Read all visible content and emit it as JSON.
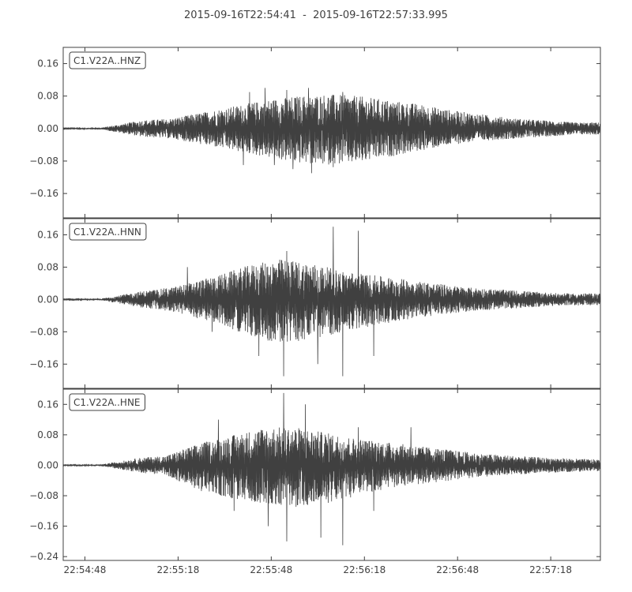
{
  "title": "2015-09-16T22:54:41  -  2015-09-16T22:57:33.995",
  "chart_data": [
    {
      "type": "line",
      "label": "C1.V22A..HNZ",
      "ylim": [
        -0.22,
        0.2
      ],
      "yticks": [
        -0.16,
        -0.08,
        0.0,
        0.08,
        0.16
      ],
      "ytick_labels": [
        "−0.16",
        "−0.08",
        "0.00",
        "0.08",
        "0.16"
      ],
      "envelope": {
        "times": [
          0,
          12,
          18,
          25,
          35,
          45,
          55,
          65,
          75,
          85,
          95,
          105,
          115,
          125,
          135,
          145,
          155,
          165,
          172.995
        ],
        "positive": [
          0.001,
          0.002,
          0.01,
          0.02,
          0.025,
          0.04,
          0.055,
          0.07,
          0.08,
          0.085,
          0.08,
          0.07,
          0.06,
          0.045,
          0.035,
          0.025,
          0.02,
          0.015,
          0.015
        ],
        "negative": [
          0.001,
          0.002,
          0.01,
          0.02,
          0.025,
          0.04,
          0.055,
          0.07,
          0.085,
          0.09,
          0.085,
          0.07,
          0.055,
          0.04,
          0.03,
          0.025,
          0.02,
          0.015,
          0.015
        ]
      },
      "peaks": [
        [
          60,
          0.09
        ],
        [
          65,
          0.1
        ],
        [
          72,
          0.095
        ],
        [
          79,
          0.1
        ],
        [
          90,
          0.09
        ],
        [
          68,
          -0.09
        ],
        [
          74,
          -0.1
        ],
        [
          80,
          -0.11
        ],
        [
          87,
          -0.095
        ],
        [
          58,
          -0.09
        ]
      ]
    },
    {
      "type": "line",
      "label": "C1.V22A..HNN",
      "ylim": [
        -0.22,
        0.2
      ],
      "yticks": [
        -0.16,
        -0.08,
        0.0,
        0.08,
        0.16
      ],
      "ytick_labels": [
        "−0.16",
        "−0.08",
        "0.00",
        "0.08",
        "0.16"
      ],
      "envelope": {
        "times": [
          0,
          12,
          18,
          25,
          35,
          40,
          50,
          60,
          70,
          80,
          90,
          100,
          110,
          120,
          130,
          140,
          150,
          160,
          172.995
        ],
        "positive": [
          0.001,
          0.002,
          0.01,
          0.02,
          0.03,
          0.04,
          0.06,
          0.085,
          0.1,
          0.09,
          0.07,
          0.06,
          0.05,
          0.04,
          0.03,
          0.025,
          0.02,
          0.015,
          0.015
        ],
        "negative": [
          0.001,
          0.002,
          0.01,
          0.02,
          0.03,
          0.04,
          0.06,
          0.09,
          0.11,
          0.1,
          0.08,
          0.065,
          0.05,
          0.04,
          0.03,
          0.025,
          0.02,
          0.015,
          0.015
        ]
      },
      "peaks": [
        [
          40,
          0.08
        ],
        [
          63,
          0.13
        ],
        [
          72,
          0.12
        ],
        [
          87,
          0.18
        ],
        [
          95,
          0.17
        ],
        [
          71,
          -0.19
        ],
        [
          90,
          -0.19
        ],
        [
          82,
          -0.16
        ],
        [
          63,
          -0.14
        ],
        [
          48,
          -0.08
        ],
        [
          100,
          -0.14
        ]
      ]
    },
    {
      "type": "line",
      "label": "C1.V22A..HNE",
      "ylim": [
        -0.25,
        0.2
      ],
      "yticks": [
        -0.24,
        -0.16,
        -0.08,
        0.0,
        0.08,
        0.16
      ],
      "ytick_labels": [
        "−0.24",
        "−0.16",
        "−0.08",
        "0.00",
        "0.08",
        "0.16"
      ],
      "envelope": {
        "times": [
          0,
          12,
          18,
          25,
          33,
          38,
          45,
          55,
          65,
          75,
          85,
          95,
          105,
          115,
          125,
          135,
          145,
          155,
          172.995
        ],
        "positive": [
          0.001,
          0.002,
          0.01,
          0.02,
          0.025,
          0.04,
          0.06,
          0.08,
          0.1,
          0.1,
          0.085,
          0.07,
          0.06,
          0.05,
          0.04,
          0.03,
          0.025,
          0.02,
          0.015
        ],
        "negative": [
          0.001,
          0.002,
          0.01,
          0.02,
          0.025,
          0.045,
          0.07,
          0.09,
          0.1,
          0.11,
          0.1,
          0.08,
          0.06,
          0.05,
          0.04,
          0.03,
          0.025,
          0.02,
          0.015
        ]
      },
      "peaks": [
        [
          50,
          0.12
        ],
        [
          66,
          0.17
        ],
        [
          71,
          0.19
        ],
        [
          78,
          0.16
        ],
        [
          95,
          0.1
        ],
        [
          112,
          0.1
        ],
        [
          72,
          -0.2
        ],
        [
          83,
          -0.19
        ],
        [
          90,
          -0.21
        ],
        [
          66,
          -0.16
        ],
        [
          55,
          -0.12
        ],
        [
          100,
          -0.12
        ]
      ]
    }
  ],
  "xaxis": {
    "start_seconds": 0,
    "end_seconds": 172.995,
    "tick_seconds": [
      7,
      37,
      67,
      97,
      127,
      157
    ],
    "tick_labels": [
      "22:54:48",
      "22:55:18",
      "22:55:48",
      "22:56:18",
      "22:56:48",
      "22:57:18"
    ]
  },
  "colors": {
    "trace": "#404040",
    "axes": "#404040",
    "background": "#ffffff"
  }
}
